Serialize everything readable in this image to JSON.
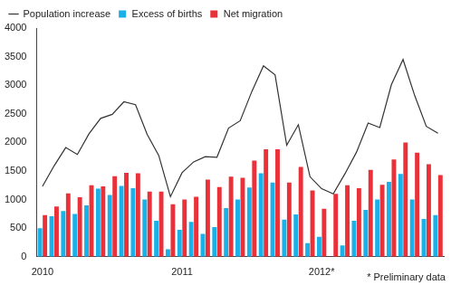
{
  "chart_data": {
    "type": "bar",
    "categories": [
      "2010",
      null,
      null,
      null,
      null,
      null,
      null,
      null,
      null,
      null,
      null,
      null,
      "2011",
      null,
      null,
      null,
      null,
      null,
      null,
      null,
      null,
      null,
      null,
      null,
      "2012*",
      null,
      null,
      null,
      null,
      null,
      null,
      null,
      null,
      null,
      null
    ],
    "series": [
      {
        "name": "Excess of births",
        "color": "#1ab0e8",
        "type": "bar",
        "values": [
          500,
          710,
          800,
          750,
          900,
          1190,
          1080,
          1240,
          1200,
          1000,
          630,
          130,
          470,
          610,
          400,
          520,
          850,
          1000,
          1210,
          1460,
          1300,
          650,
          740,
          240,
          350,
          0,
          200,
          630,
          820,
          1000,
          1310,
          1450,
          1000,
          660,
          730
        ]
      },
      {
        "name": "Net migration",
        "color": "#ea3038",
        "type": "bar",
        "values": [
          730,
          880,
          1110,
          1040,
          1250,
          1230,
          1410,
          1470,
          1460,
          1140,
          1140,
          920,
          1000,
          1050,
          1350,
          1220,
          1400,
          1380,
          1680,
          1880,
          1880,
          1300,
          1570,
          1160,
          840,
          1100,
          1250,
          1200,
          1520,
          1260,
          1700,
          2000,
          1820,
          1620,
          1430
        ]
      },
      {
        "name": "Population increase",
        "color": "#333333",
        "type": "line",
        "line_style": "solid",
        "marker": "none",
        "values": [
          1230,
          1590,
          1910,
          1790,
          2150,
          2420,
          2490,
          2710,
          2660,
          2140,
          1770,
          1050,
          1470,
          1660,
          1750,
          1740,
          2250,
          2380,
          2890,
          3340,
          3180,
          1950,
          2310,
          1400,
          1190,
          1100,
          1450,
          1830,
          2340,
          2260,
          3010,
          3450,
          2820,
          2280,
          2160
        ]
      }
    ],
    "ylim": [
      0,
      4000
    ],
    "yticks": [
      0,
      500,
      1000,
      1500,
      2000,
      2500,
      3000,
      3500,
      4000
    ],
    "grid": false,
    "legend": "upper left",
    "annotations": [
      "* Preliminary data"
    ]
  }
}
